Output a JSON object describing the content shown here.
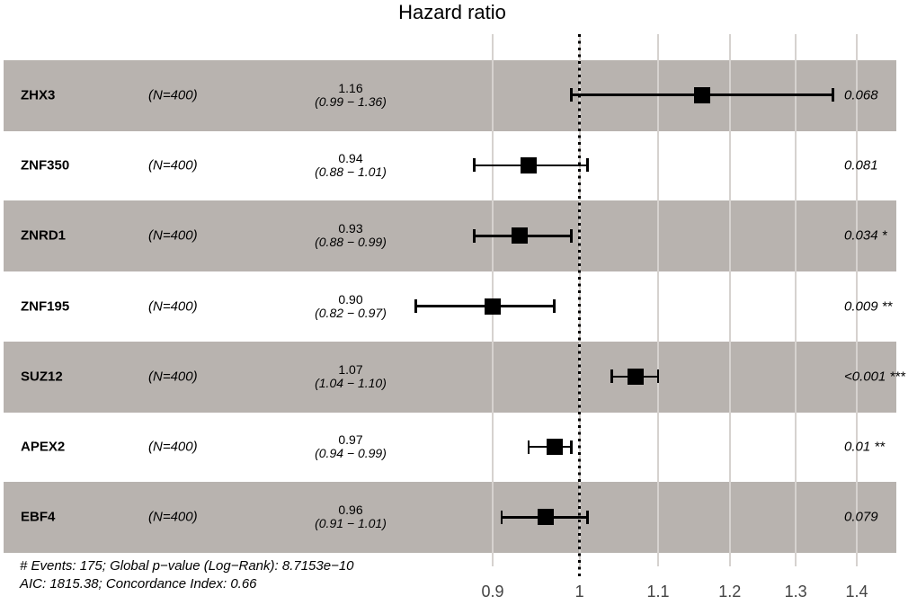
{
  "title": "Hazard ratio",
  "colors": {
    "band": "#b8b3af",
    "gridline": "#d6d2cf",
    "marker": "#000000",
    "reference_line": "#000000",
    "axis_text": "#444444",
    "text": "#000000"
  },
  "chart_data": {
    "type": "forest",
    "title": "Hazard ratio",
    "x_scale": "log",
    "x_ticks": [
      "0.9",
      "1",
      "1.1",
      "1.2",
      "1.3",
      "1.4"
    ],
    "x_tick_values": [
      0.9,
      1,
      1.1,
      1.2,
      1.3,
      1.4
    ],
    "x_range": [
      0.87,
      1.47
    ],
    "reference_value": 1,
    "grid": "vertical-major-only",
    "legend": "none",
    "rows": [
      {
        "gene": "ZHX3",
        "n_label": "(N=400)",
        "estimate": 1.16,
        "ci_low": 0.99,
        "ci_high": 1.36,
        "estimate_label": "1.16",
        "ci_label": "(0.99 − 1.36)",
        "p_label": "0.068",
        "shaded": true
      },
      {
        "gene": "ZNF350",
        "n_label": "(N=400)",
        "estimate": 0.94,
        "ci_low": 0.88,
        "ci_high": 1.01,
        "estimate_label": "0.94",
        "ci_label": "(0.88 − 1.01)",
        "p_label": "0.081",
        "shaded": false
      },
      {
        "gene": "ZNRD1",
        "n_label": "(N=400)",
        "estimate": 0.93,
        "ci_low": 0.88,
        "ci_high": 0.99,
        "estimate_label": "0.93",
        "ci_label": "(0.88 − 0.99)",
        "p_label": "0.034 *",
        "shaded": true
      },
      {
        "gene": "ZNF195",
        "n_label": "(N=400)",
        "estimate": 0.9,
        "ci_low": 0.82,
        "ci_high": 0.97,
        "estimate_label": "0.90",
        "ci_label": "(0.82 − 0.97)",
        "p_label": "0.009 **",
        "shaded": false
      },
      {
        "gene": "SUZ12",
        "n_label": "(N=400)",
        "estimate": 1.07,
        "ci_low": 1.04,
        "ci_high": 1.1,
        "estimate_label": "1.07",
        "ci_label": "(1.04 − 1.10)",
        "p_label": "<0.001 ***",
        "shaded": true
      },
      {
        "gene": "APEX2",
        "n_label": "(N=400)",
        "estimate": 0.97,
        "ci_low": 0.94,
        "ci_high": 0.99,
        "estimate_label": "0.97",
        "ci_label": "(0.94 − 0.99)",
        "p_label": "0.01 **",
        "shaded": false
      },
      {
        "gene": "EBF4",
        "n_label": "(N=400)",
        "estimate": 0.96,
        "ci_low": 0.91,
        "ci_high": 1.01,
        "estimate_label": "0.96",
        "ci_label": "(0.91 − 1.01)",
        "p_label": "0.079",
        "shaded": true
      }
    ],
    "footer_lines": [
      "# Events: 175; Global p−value (Log−Rank): 8.7153e−10",
      "AIC: 1815.38; Concordance Index: 0.66"
    ]
  }
}
